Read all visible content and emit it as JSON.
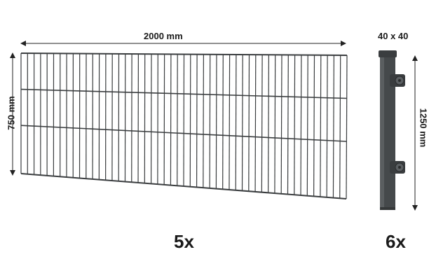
{
  "panel": {
    "width_label": "2000 mm",
    "height_label": "750 mm",
    "quantity": "5x"
  },
  "post": {
    "size_label": "40 x 40",
    "height_label": "1250 mm",
    "quantity": "6x"
  },
  "colors": {
    "wire": "#3a3d3f",
    "post": "#45494b",
    "arrow": "#222222"
  }
}
